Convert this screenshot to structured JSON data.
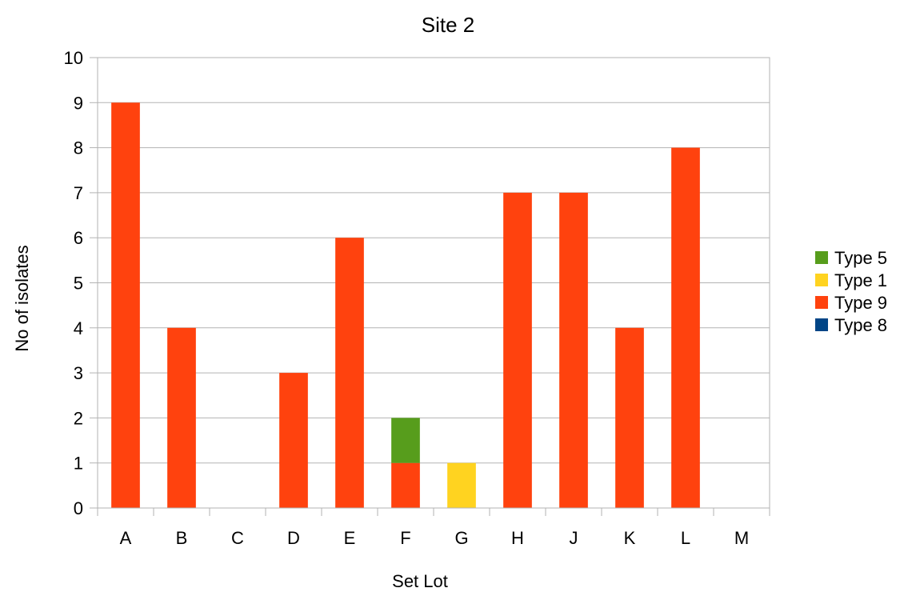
{
  "chart_data": {
    "type": "bar",
    "stacked": true,
    "title": "Site 2",
    "xlabel": "Set Lot",
    "ylabel": "No of isolates",
    "ylim": [
      0,
      10
    ],
    "yticks": [
      0,
      1,
      2,
      3,
      4,
      5,
      6,
      7,
      8,
      9,
      10
    ],
    "grid": true,
    "legend": "right",
    "categories": [
      "A",
      "B",
      "C",
      "D",
      "E",
      "F",
      "G",
      "H",
      "J",
      "K",
      "L",
      "M"
    ],
    "series": [
      {
        "name": "Type 8",
        "color": "#004586",
        "values": [
          0,
          0,
          0,
          0,
          0,
          0,
          0,
          0,
          0,
          0,
          0,
          0
        ]
      },
      {
        "name": "Type 9",
        "color": "#ff420e",
        "values": [
          9,
          4,
          0,
          3,
          6,
          1,
          0,
          7,
          7,
          4,
          8,
          0
        ]
      },
      {
        "name": "Type 1",
        "color": "#ffd320",
        "values": [
          0,
          0,
          0,
          0,
          0,
          0,
          1,
          0,
          0,
          0,
          0,
          0
        ]
      },
      {
        "name": "Type 5",
        "color": "#579d1c",
        "values": [
          0,
          0,
          0,
          0,
          0,
          1,
          0,
          0,
          0,
          0,
          0,
          0
        ]
      }
    ],
    "legend_order": [
      "Type 5",
      "Type 1",
      "Type 9",
      "Type 8"
    ]
  }
}
